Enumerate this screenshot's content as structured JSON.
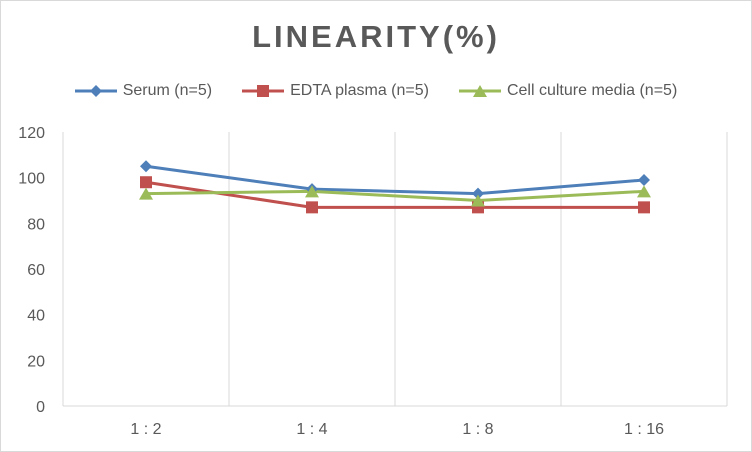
{
  "chart_data": {
    "type": "line",
    "title": "LINEARITY(%)",
    "categories": [
      "1:2",
      "1:4",
      "1:8",
      "1:16"
    ],
    "ylim": [
      0,
      120
    ],
    "yticks": [
      0,
      20,
      40,
      60,
      80,
      100,
      120
    ],
    "grid": "vertical",
    "legend_position": "top",
    "series": [
      {
        "name": "Serum (n=5)",
        "values": [
          105,
          95,
          93,
          99
        ],
        "color": "#4e7fb9",
        "marker": "diamond"
      },
      {
        "name": "EDTA plasma (n=5)",
        "values": [
          98,
          87,
          87,
          87
        ],
        "color": "#c0504d",
        "marker": "square"
      },
      {
        "name": "Cell culture media (n=5)",
        "values": [
          93,
          94,
          90,
          94
        ],
        "color": "#9bbb59",
        "marker": "triangle"
      }
    ]
  }
}
